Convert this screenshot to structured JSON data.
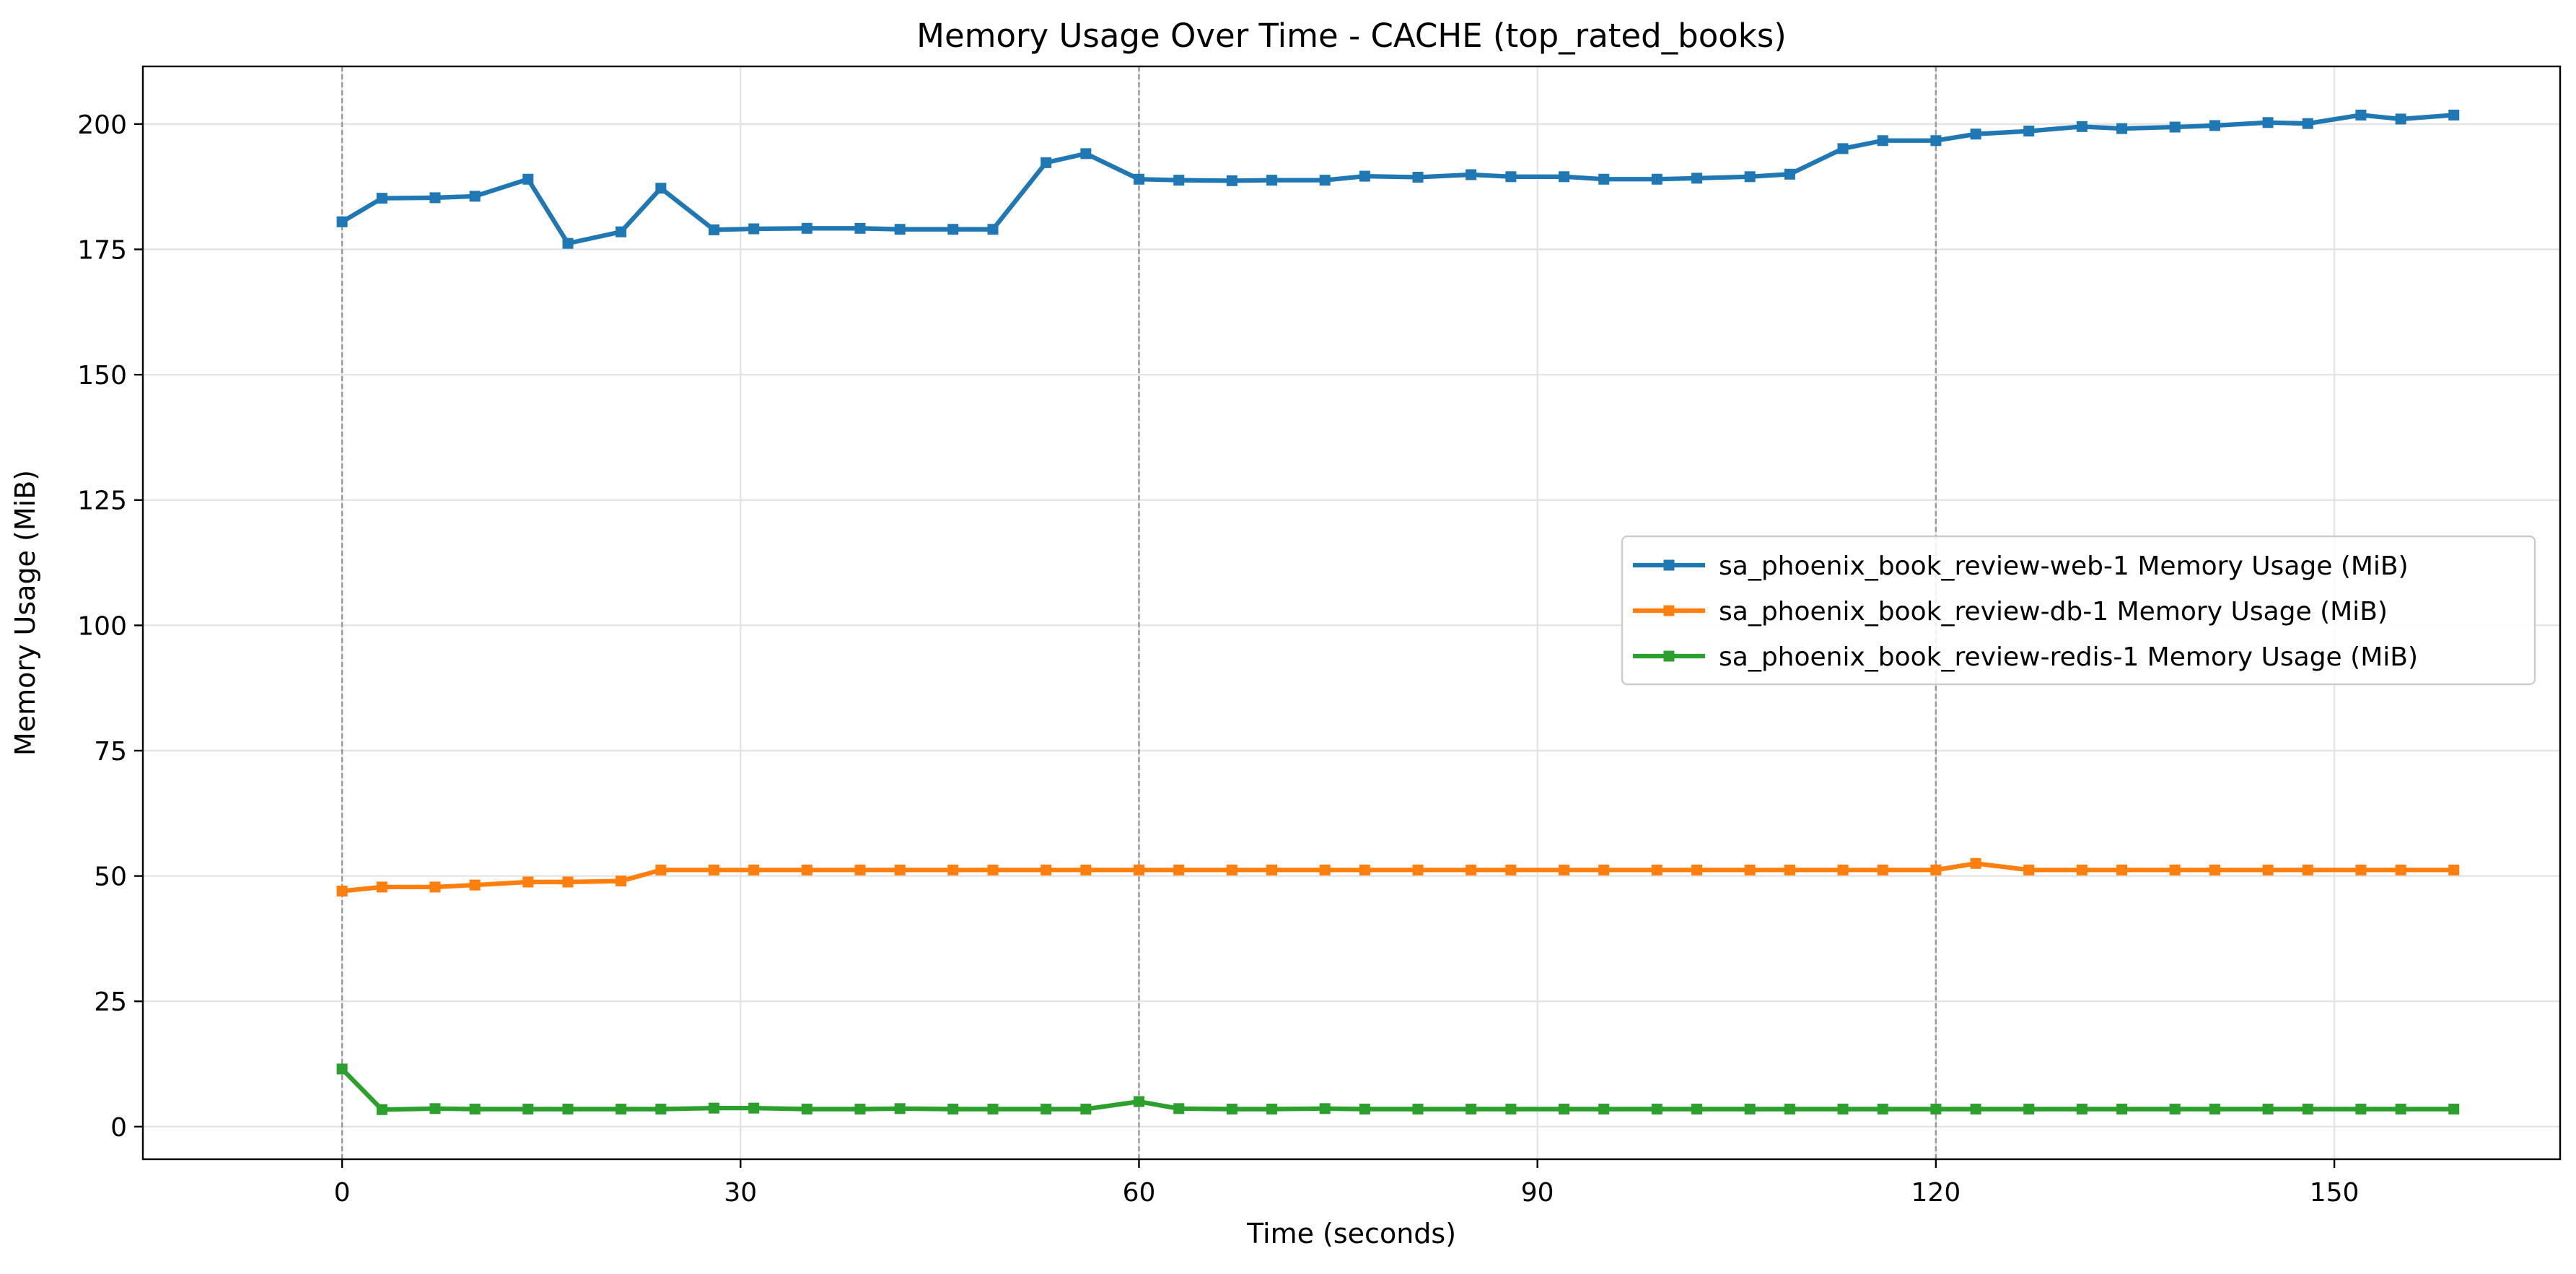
{
  "chart_data": {
    "type": "line",
    "title": "Memory Usage Over Time - CACHE (top_rated_books)",
    "xlabel": "Time (seconds)",
    "ylabel": "Memory Usage (MiB)",
    "xlim": [
      -15,
      167
    ],
    "ylim": [
      -6.5,
      211.5
    ],
    "x_ticks": [
      0,
      30,
      60,
      90,
      120,
      150
    ],
    "y_ticks": [
      0,
      25,
      50,
      75,
      100,
      125,
      150,
      175,
      200
    ],
    "vertical_markers": [
      0,
      60,
      120
    ],
    "grid": true,
    "legend_position": "center-right",
    "x": [
      0,
      3,
      7,
      10,
      14,
      17,
      21,
      24,
      28,
      31,
      35,
      39,
      42,
      46,
      49,
      53,
      56,
      60,
      63,
      67,
      70,
      74,
      77,
      81,
      85,
      88,
      92,
      95,
      99,
      102,
      106,
      109,
      113,
      116,
      120,
      123,
      127,
      131,
      134,
      138,
      141,
      145,
      148,
      152,
      155,
      159
    ],
    "series": [
      {
        "name": "sa_phoenix_book_review-web-1 Memory Usage (MiB)",
        "color": "#1f77b4",
        "values": [
          180.5,
          185.2,
          185.3,
          185.6,
          189.0,
          176.2,
          178.5,
          187.2,
          178.9,
          179.1,
          179.2,
          179.2,
          179.0,
          179.0,
          179.0,
          192.3,
          194.1,
          189.0,
          188.8,
          188.7,
          188.8,
          188.8,
          189.6,
          189.4,
          189.9,
          189.5,
          189.5,
          189.0,
          189.0,
          189.2,
          189.5,
          190.0,
          195.1,
          196.7,
          196.7,
          198.0,
          198.6,
          199.5,
          199.1,
          199.4,
          199.7,
          200.3,
          200.1,
          201.8,
          201.0,
          201.8
        ]
      },
      {
        "name": "sa_phoenix_book_review-db-1 Memory Usage (MiB)",
        "color": "#ff7f0e",
        "values": [
          47.0,
          47.8,
          47.8,
          48.2,
          48.8,
          48.8,
          49.0,
          51.2,
          51.2,
          51.2,
          51.2,
          51.2,
          51.2,
          51.2,
          51.2,
          51.2,
          51.2,
          51.2,
          51.2,
          51.2,
          51.2,
          51.2,
          51.2,
          51.2,
          51.2,
          51.2,
          51.2,
          51.2,
          51.2,
          51.2,
          51.2,
          51.2,
          51.2,
          51.2,
          51.2,
          52.5,
          51.2,
          51.2,
          51.2,
          51.2,
          51.2,
          51.2,
          51.2,
          51.2,
          51.2,
          51.2
        ]
      },
      {
        "name": "sa_phoenix_book_review-redis-1 Memory Usage (MiB)",
        "color": "#2ca02c",
        "values": [
          11.5,
          3.4,
          3.6,
          3.5,
          3.5,
          3.5,
          3.5,
          3.5,
          3.7,
          3.7,
          3.5,
          3.5,
          3.6,
          3.5,
          3.5,
          3.5,
          3.5,
          5.0,
          3.6,
          3.5,
          3.5,
          3.6,
          3.5,
          3.5,
          3.5,
          3.5,
          3.5,
          3.5,
          3.5,
          3.5,
          3.5,
          3.5,
          3.5,
          3.5,
          3.5,
          3.5,
          3.5,
          3.5,
          3.5,
          3.5,
          3.5,
          3.5,
          3.5,
          3.5,
          3.5,
          3.5
        ]
      }
    ]
  }
}
